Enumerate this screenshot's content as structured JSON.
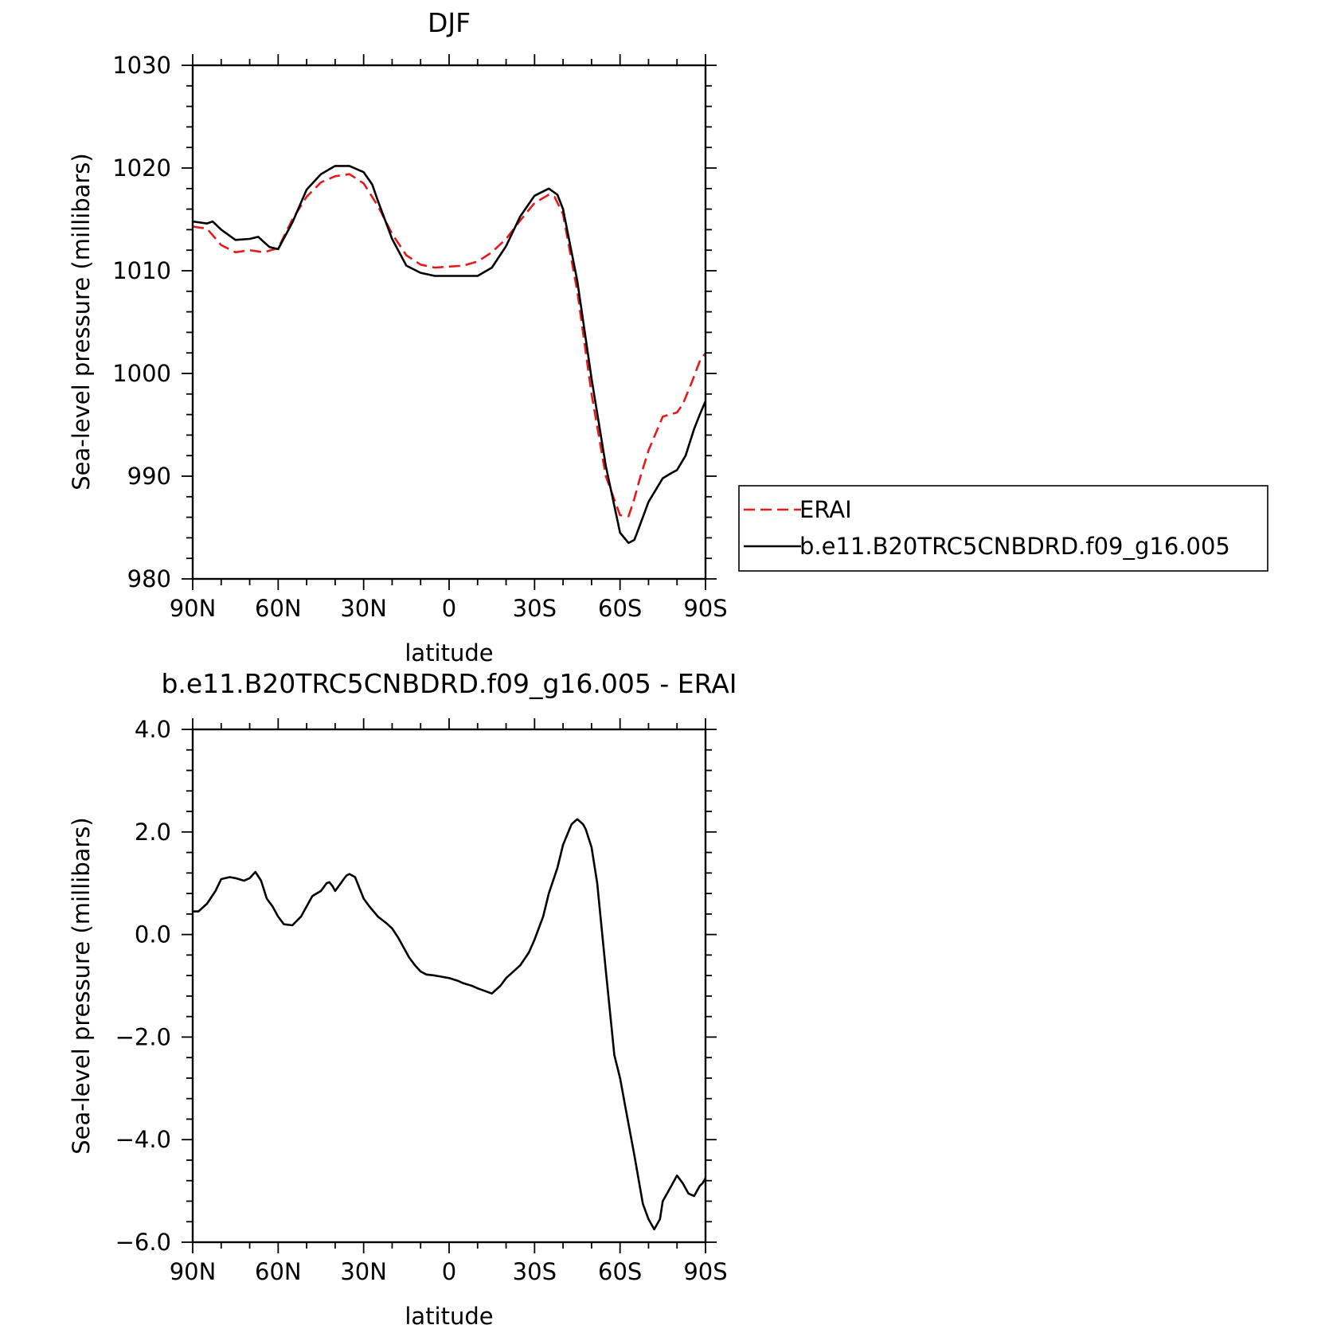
{
  "colors": {
    "erai": "#e41a1c",
    "model": "#000000"
  },
  "chart_data": [
    {
      "type": "line",
      "title": "DJF",
      "xlabel": "latitude",
      "ylabel": "Sea-level pressure (millibars)",
      "xlim": [
        90,
        -90
      ],
      "ylim": [
        980,
        1030
      ],
      "xticks": [
        {
          "value": 90,
          "label": "90N"
        },
        {
          "value": 60,
          "label": "60N"
        },
        {
          "value": 30,
          "label": "30N"
        },
        {
          "value": 0,
          "label": "0"
        },
        {
          "value": -30,
          "label": "30S"
        },
        {
          "value": -60,
          "label": "60S"
        },
        {
          "value": -90,
          "label": "90S"
        }
      ],
      "yticks": [
        {
          "value": 980,
          "label": "980"
        },
        {
          "value": 990,
          "label": "990"
        },
        {
          "value": 1000,
          "label": "1000"
        },
        {
          "value": 1010,
          "label": "1010"
        },
        {
          "value": 1020,
          "label": "1020"
        },
        {
          "value": 1030,
          "label": "1030"
        }
      ],
      "legend": {
        "position": "right",
        "entries": [
          "ERAI",
          "b.e11.B20TRC5CNBDRD.f09_g16.005"
        ]
      },
      "series": [
        {
          "name": "ERAI",
          "style": "dashed",
          "x": [
            90,
            85,
            80,
            75,
            70,
            65,
            60,
            55,
            50,
            45,
            40,
            35,
            30,
            25,
            20,
            15,
            10,
            5,
            0,
            -5,
            -10,
            -15,
            -20,
            -25,
            -30,
            -35,
            -37,
            -40,
            -45,
            -50,
            -55,
            -60,
            -63,
            -65,
            -67,
            -70,
            -75,
            -80,
            -82,
            -85,
            -88,
            -90
          ],
          "y": [
            1014.3,
            1014.1,
            1012.5,
            1011.8,
            1012.0,
            1011.8,
            1012.2,
            1015.0,
            1017.2,
            1018.6,
            1019.2,
            1019.4,
            1018.5,
            1016.3,
            1013.6,
            1011.5,
            1010.6,
            1010.3,
            1010.4,
            1010.5,
            1010.9,
            1011.8,
            1013.1,
            1014.9,
            1016.6,
            1017.4,
            1017.2,
            1015.5,
            1008.0,
            998.0,
            990.0,
            986.2,
            986.1,
            987.8,
            989.8,
            992.5,
            995.8,
            996.2,
            997.0,
            999.0,
            1001.2,
            1002.0
          ]
        },
        {
          "name": "b.e11.B20TRC5CNBDRD.f09_g16.005",
          "style": "solid",
          "x": [
            90,
            85,
            83,
            80,
            75,
            70,
            67,
            65,
            63,
            60,
            55,
            50,
            45,
            40,
            35,
            30,
            27,
            25,
            20,
            15,
            10,
            5,
            2,
            0,
            -5,
            -10,
            -15,
            -20,
            -25,
            -30,
            -35,
            -38,
            -40,
            -45,
            -50,
            -55,
            -60,
            -63,
            -65,
            -66,
            -68,
            -70,
            -75,
            -78,
            -80,
            -83,
            -86,
            -88,
            -90
          ],
          "y": [
            1014.8,
            1014.6,
            1014.8,
            1014.0,
            1013.0,
            1013.1,
            1013.3,
            1012.8,
            1012.3,
            1012.1,
            1014.7,
            1017.9,
            1019.4,
            1020.2,
            1020.2,
            1019.6,
            1018.4,
            1016.8,
            1013.1,
            1010.5,
            1009.8,
            1009.5,
            1009.5,
            1009.5,
            1009.5,
            1009.5,
            1010.3,
            1012.4,
            1015.3,
            1017.3,
            1018.0,
            1017.4,
            1016.0,
            1009.0,
            999.5,
            991.0,
            984.5,
            983.5,
            983.8,
            984.5,
            986.0,
            987.5,
            989.8,
            990.3,
            990.6,
            992.0,
            994.6,
            996.0,
            997.3
          ]
        }
      ]
    },
    {
      "type": "line",
      "title": "b.e11.B20TRC5CNBDRD.f09_g16.005 - ERAI",
      "xlabel": "latitude",
      "ylabel": "Sea-level pressure (millibars)",
      "xlim": [
        90,
        -90
      ],
      "ylim": [
        -6,
        4
      ],
      "xticks": [
        {
          "value": 90,
          "label": "90N"
        },
        {
          "value": 60,
          "label": "60N"
        },
        {
          "value": 30,
          "label": "30N"
        },
        {
          "value": 0,
          "label": "0"
        },
        {
          "value": -30,
          "label": "30S"
        },
        {
          "value": -60,
          "label": "60S"
        },
        {
          "value": -90,
          "label": "90S"
        }
      ],
      "yticks": [
        {
          "value": -6,
          "label": "−6.0"
        },
        {
          "value": -4,
          "label": "−4.0"
        },
        {
          "value": -2,
          "label": "−2.0"
        },
        {
          "value": 0,
          "label": "0.0"
        },
        {
          "value": 2,
          "label": "2.0"
        },
        {
          "value": 4,
          "label": "4.0"
        }
      ],
      "series": [
        {
          "style": "solid",
          "x": [
            90,
            88,
            85,
            82,
            80,
            77,
            75,
            72,
            70,
            68,
            66,
            64,
            62,
            60,
            58,
            55,
            52,
            50,
            48,
            45,
            43,
            42,
            41,
            40,
            38,
            37,
            36,
            35,
            33,
            30,
            28,
            25,
            22,
            20,
            18,
            16,
            14,
            12,
            10,
            8,
            5,
            3,
            0,
            -3,
            -5,
            -8,
            -10,
            -15,
            -18,
            -20,
            -25,
            -28,
            -30,
            -33,
            -35,
            -38,
            -40,
            -43,
            -45,
            -47,
            -48,
            -50,
            -52,
            -55,
            -58,
            -60,
            -62,
            -65,
            -68,
            -70,
            -72,
            -74,
            -75,
            -78,
            -80,
            -82,
            -84,
            -86,
            -88,
            -89,
            -90
          ],
          "y": [
            0.45,
            0.45,
            0.6,
            0.85,
            1.08,
            1.12,
            1.1,
            1.05,
            1.1,
            1.22,
            1.05,
            0.7,
            0.55,
            0.35,
            0.2,
            0.18,
            0.35,
            0.55,
            0.75,
            0.85,
            1.0,
            1.02,
            0.95,
            0.85,
            1.0,
            1.08,
            1.15,
            1.18,
            1.12,
            0.7,
            0.55,
            0.35,
            0.22,
            0.12,
            -0.05,
            -0.25,
            -0.45,
            -0.6,
            -0.72,
            -0.78,
            -0.8,
            -0.82,
            -0.85,
            -0.9,
            -0.95,
            -1.0,
            -1.05,
            -1.15,
            -1.0,
            -0.85,
            -0.6,
            -0.35,
            -0.1,
            0.35,
            0.8,
            1.3,
            1.75,
            2.15,
            2.25,
            2.15,
            2.05,
            1.7,
            1.0,
            -0.7,
            -2.35,
            -2.8,
            -3.4,
            -4.3,
            -5.25,
            -5.55,
            -5.75,
            -5.55,
            -5.2,
            -4.9,
            -4.7,
            -4.85,
            -5.05,
            -5.1,
            -4.9,
            -4.85,
            -4.75
          ]
        }
      ]
    }
  ]
}
